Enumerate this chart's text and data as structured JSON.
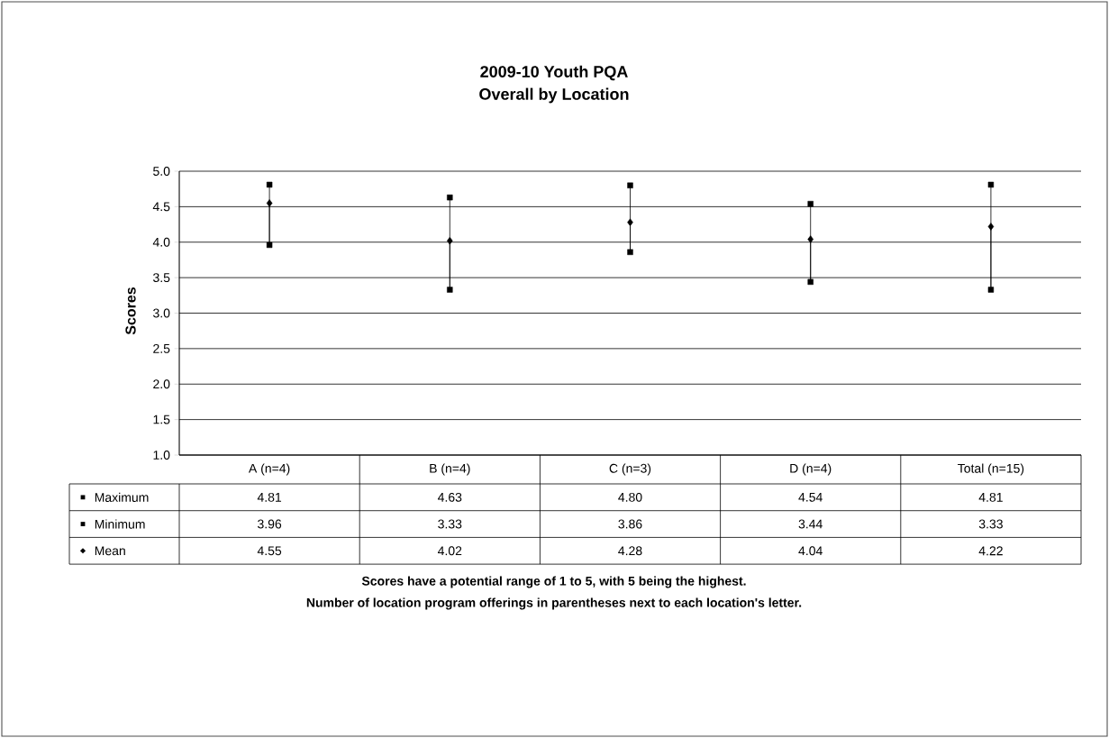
{
  "chart_data": {
    "type": "scatter",
    "title": "2009-10 Youth PQA",
    "subtitle": "Overall by Location",
    "ylabel": "Scores",
    "categories": [
      "A (n=4)",
      "B (n=4)",
      "C (n=3)",
      "D (n=4)",
      "Total (n=15)"
    ],
    "series": [
      {
        "name": "Maximum",
        "color": "#000000",
        "marker": "square",
        "values": [
          4.81,
          4.63,
          4.8,
          4.54,
          4.81
        ],
        "value_labels": [
          "4.81",
          "4.63",
          "4.80",
          "4.54",
          "4.81"
        ]
      },
      {
        "name": "Minimum",
        "color": "#000000",
        "marker": "square",
        "values": [
          3.96,
          3.33,
          3.86,
          3.44,
          3.33
        ],
        "value_labels": [
          "3.96",
          "3.33",
          "3.86",
          "3.44",
          "3.33"
        ]
      },
      {
        "name": "Mean",
        "color": "#000000",
        "marker": "diamond",
        "values": [
          4.55,
          4.02,
          4.28,
          4.04,
          4.22
        ],
        "value_labels": [
          "4.55",
          "4.02",
          "4.28",
          "4.04",
          "4.22"
        ]
      }
    ],
    "ylim": [
      1,
      5
    ],
    "yticks": [
      {
        "value": 1,
        "label": "1.0"
      },
      {
        "value": 1.5,
        "label": "1.5"
      },
      {
        "value": 2,
        "label": "2.0"
      },
      {
        "value": 2.5,
        "label": "2.5"
      },
      {
        "value": 3,
        "label": "3.0"
      },
      {
        "value": 3.5,
        "label": "3.5"
      },
      {
        "value": 4,
        "label": "4.0"
      },
      {
        "value": 4.5,
        "label": "4.5"
      },
      {
        "value": 5,
        "label": "5.0"
      }
    ],
    "grid": "y",
    "legend": "bottom left",
    "annotations": [
      "Scores have a potential range of 1 to 5, with 5 being the highest.",
      "Number of location program offerings in parentheses next to each location's letter."
    ]
  }
}
